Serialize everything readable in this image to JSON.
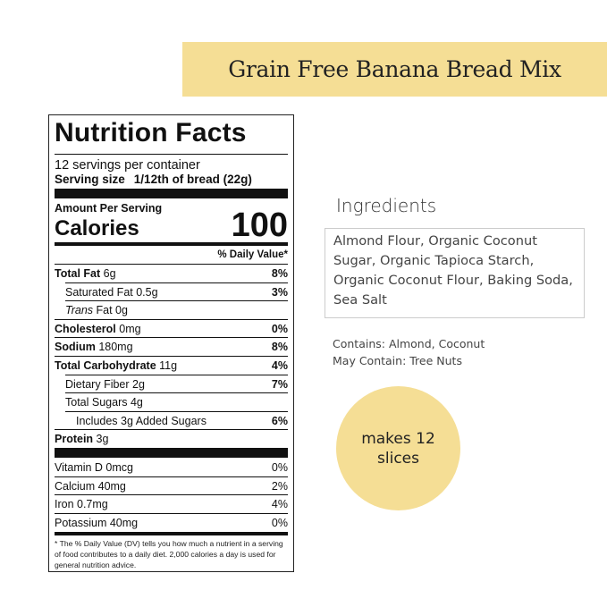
{
  "banner": {
    "title": "Grain Free Banana Bread Mix",
    "color": "#f5de95"
  },
  "label": {
    "title": "Nutrition Facts",
    "servings": "12 servings per container",
    "serving_size_label": "Serving size",
    "serving_size_value": "1/12th of bread (22g)",
    "amount_per_serving": "Amount Per Serving",
    "calories_label": "Calories",
    "calories_value": "100",
    "dv_header": "% Daily Value*",
    "nutrients": [
      {
        "name": "Total Fat",
        "amount": "6g",
        "dv": "8%"
      },
      {
        "name": "Saturated Fat",
        "amount": "0.5g",
        "dv": "3%"
      },
      {
        "name": "Trans",
        "amount": "Fat 0g",
        "dv": ""
      },
      {
        "name": "Cholesterol",
        "amount": "0mg",
        "dv": "0%"
      },
      {
        "name": "Sodium",
        "amount": "180mg",
        "dv": "8%"
      },
      {
        "name": "Total Carbohydrate",
        "amount": "11g",
        "dv": "4%"
      },
      {
        "name": "Dietary Fiber",
        "amount": "2g",
        "dv": "7%"
      },
      {
        "name": "Total Sugars",
        "amount": "4g",
        "dv": ""
      },
      {
        "name": "Includes 3g Added Sugars",
        "amount": "",
        "dv": "6%"
      },
      {
        "name": "Protein",
        "amount": "3g",
        "dv": ""
      }
    ],
    "vitamins": [
      {
        "name": "Vitamin D 0mcg",
        "dv": "0%"
      },
      {
        "name": "Calcium 40mg",
        "dv": "2%"
      },
      {
        "name": "Iron 0.7mg",
        "dv": "4%"
      },
      {
        "name": "Potassium 40mg",
        "dv": "0%"
      }
    ],
    "footnote": "* The % Daily Value (DV) tells you how much a nutrient in a serving of food contributes to a daily diet. 2,000 calories a day is used for general nutrition advice."
  },
  "ingredients": {
    "heading": "Ingredients",
    "text": "Almond Flour, Organic Coconut Sugar, Organic Tapioca Starch, Organic Coconut Flour, Baking Soda, Sea Salt"
  },
  "allergens": {
    "contains": "Contains: Almond, Coconut",
    "may_contain": "May Contain: Tree Nuts"
  },
  "badge": {
    "line1": "makes 12",
    "line2": "slices"
  }
}
